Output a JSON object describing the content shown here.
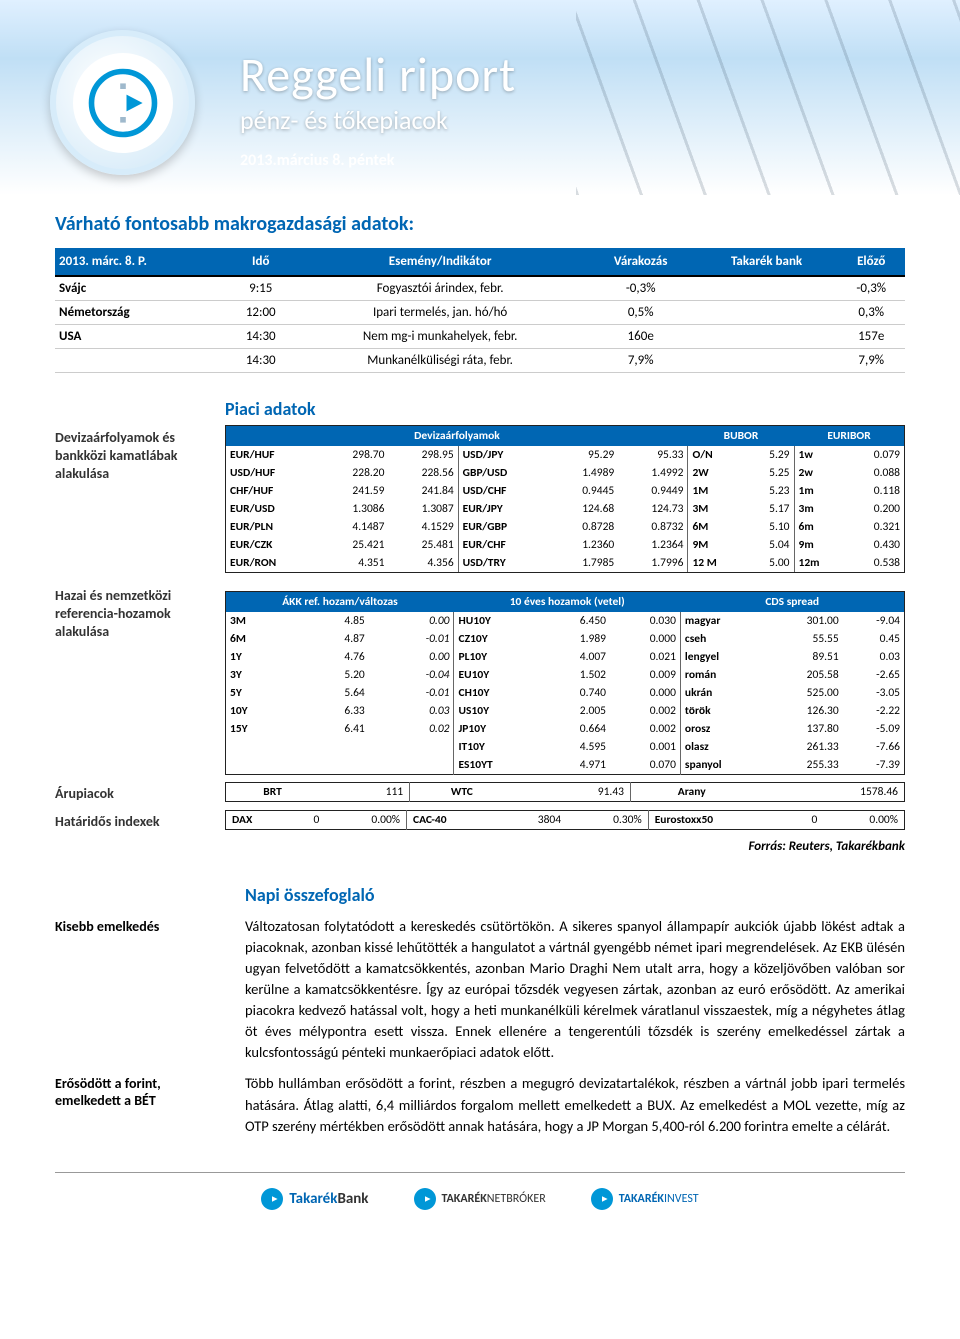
{
  "banner": {
    "title": "Reggeli riport",
    "subtitle": "pénz- és tőkepiacok",
    "date": "2013.március 8. péntek"
  },
  "macro": {
    "title": "Várható fontosabb makrogazdasági adatok:",
    "headers": [
      "2013. márc. 8. P.",
      "Idő",
      "Esemény/Indikátor",
      "Várakozás",
      "Takarék bank",
      "Előző"
    ],
    "rows": [
      [
        "Svájc",
        "9:15",
        "Fogyasztói árindex, febr.",
        "-0,3%",
        "",
        "-0,3%"
      ],
      [
        "Németország",
        "12:00",
        "Ipari termelés, jan. hó/hó",
        "0,5%",
        "",
        "0,3%"
      ],
      [
        "USA",
        "14:30",
        "Nem mg-i munkahelyek, febr.",
        "160e",
        "",
        "157e"
      ],
      [
        "",
        "14:30",
        "Munkanélküliségi ráta, febr.",
        "7,9%",
        "",
        "7,9%"
      ]
    ]
  },
  "market": {
    "title": "Piaci adatok",
    "fx_label": "Devizaárfolyamok és bankközi kamatlábak alakulása",
    "fx_headers": [
      "Devizaárfolyamok",
      "BUBOR",
      "EURIBOR"
    ],
    "fx_rows": [
      [
        "EUR/HUF",
        "298.70",
        "298.95",
        "USD/JPY",
        "95.29",
        "95.33",
        "O/N",
        "5.29",
        "1w",
        "0.079"
      ],
      [
        "USD/HUF",
        "228.20",
        "228.56",
        "GBP/USD",
        "1.4989",
        "1.4992",
        "2W",
        "5.25",
        "2w",
        "0.088"
      ],
      [
        "CHF/HUF",
        "241.59",
        "241.84",
        "USD/CHF",
        "0.9445",
        "0.9449",
        "1M",
        "5.23",
        "1m",
        "0.118"
      ],
      [
        "EUR/USD",
        "1.3086",
        "1.3087",
        "EUR/JPY",
        "124.68",
        "124.73",
        "3M",
        "5.17",
        "3m",
        "0.200"
      ],
      [
        "EUR/PLN",
        "4.1487",
        "4.1529",
        "EUR/GBP",
        "0.8728",
        "0.8732",
        "6M",
        "5.10",
        "6m",
        "0.321"
      ],
      [
        "EUR/CZK",
        "25.421",
        "25.481",
        "EUR/CHF",
        "1.2360",
        "1.2364",
        "9M",
        "5.04",
        "9m",
        "0.430"
      ],
      [
        "EUR/RON",
        "4.351",
        "4.356",
        "USD/TRY",
        "1.7985",
        "1.7996",
        "12 M",
        "5.00",
        "12m",
        "0.538"
      ]
    ],
    "yield_label": "Hazai és nemzetközi referencia-hozamok alakulása",
    "yield_headers": [
      "ÁKK ref. hozam/változas",
      "10 éves hozamok (vetel)",
      "CDS spread"
    ],
    "yield_rows": [
      [
        "3M",
        "4.85",
        "0.00",
        "HU10Y",
        "6.450",
        "0.030",
        "magyar",
        "301.00",
        "-9.04"
      ],
      [
        "6M",
        "4.87",
        "-0.01",
        "CZ10Y",
        "1.989",
        "0.000",
        "cseh",
        "55.55",
        "0.45"
      ],
      [
        "1Y",
        "4.76",
        "0.00",
        "PL10Y",
        "4.007",
        "0.021",
        "lengyel",
        "89.51",
        "0.03"
      ],
      [
        "3Y",
        "5.20",
        "-0.04",
        "EU10Y",
        "1.502",
        "0.009",
        "román",
        "205.58",
        "-2.65"
      ],
      [
        "5Y",
        "5.64",
        "-0.01",
        "CH10Y",
        "0.740",
        "0.000",
        "ukrán",
        "525.00",
        "-3.05"
      ],
      [
        "10Y",
        "6.33",
        "0.03",
        "US10Y",
        "2.005",
        "0.002",
        "török",
        "126.30",
        "-2.22"
      ],
      [
        "15Y",
        "6.41",
        "0.02",
        "JP10Y",
        "0.664",
        "0.002",
        "orosz",
        "137.80",
        "-5.09"
      ],
      [
        "",
        "",
        "",
        "IT10Y",
        "4.595",
        "0.001",
        "olasz",
        "261.33",
        "-7.66"
      ],
      [
        "",
        "",
        "",
        "ES10YT",
        "4.971",
        "0.070",
        "spanyol",
        "255.33",
        "-7.39"
      ]
    ],
    "commod_label": "Árupiacok",
    "commod": [
      "BRT",
      "111",
      "WTC",
      "91.43",
      "Arany",
      "1578.46"
    ],
    "futures_label": "Határidős indexek",
    "futures": [
      "DAX",
      "0",
      "0.00%",
      "CAC-40",
      "3804",
      "0.30%",
      "Eurostoxx50",
      "0",
      "0.00%"
    ],
    "source": "Forrás: Reuters, Takarékbank"
  },
  "summary": {
    "title": "Napi összefoglaló",
    "blocks": [
      {
        "label": "Kisebb emelkedés",
        "text": "Változatosan folytatódott a kereskedés csütörtökön. A sikeres spanyol állampapír aukciók újabb lökést adtak a piacoknak, azonban kissé lehűtötték a hangulatot a vártnál gyengébb német ipari megrendelések. Az EKB ülésén ugyan felvetődött a kamatcsökkentés, azonban Mario Draghi Nem utalt arra, hogy a közeljövőben valóban sor kerülne a kamatcsökkentésre. Így az európai tőzsdék vegyesen zártak, azonban az euró erősödött. Az amerikai piacokra kedvező hatással volt, hogy a heti munkanélküli kérelmek váratlanul visszaestek, míg a négyhetes átlag öt éves mélypontra esett vissza. Ennek ellenére a tengerentúli tőzsdék is szerény emelkedéssel zártak a kulcsfontosságú pénteki munkaerőpiaci adatok előtt."
      },
      {
        "label": "Erősödött a forint, emelkedett a BÉT",
        "text": "Több hullámban erősödött a forint, részben a megugró devizatartalékok, részben a vártnál jobb ipari termelés hatására. Átlag alatti, 6,4 milliárdos forgalom mellett emelkedett a BUX. Az emelkedést a MOL vezette, míg az OTP szerény mértékben erősödött annak hatására, hogy a JP Morgan 5,400-ról 6.200 forintra emelte a célárát."
      }
    ]
  },
  "footer": {
    "brands": [
      "TakarékBank",
      "TAKARÉKNETBRÓKER",
      "TAKARÉKINVEST"
    ]
  }
}
